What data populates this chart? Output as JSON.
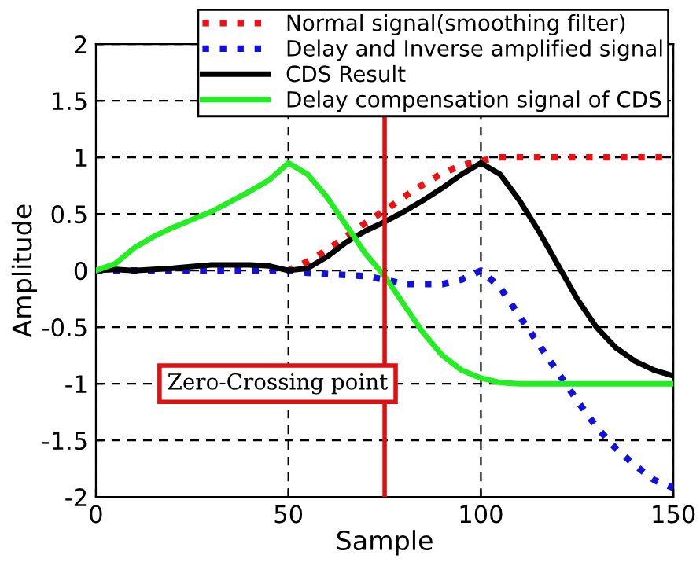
{
  "chart_data": {
    "type": "line",
    "xlabel": "Sample",
    "ylabel": "Amplitude",
    "xlim": [
      0,
      150
    ],
    "xticks": [
      0,
      50,
      100,
      150
    ],
    "ylim": [
      -2,
      2
    ],
    "yticks": [
      -2,
      -1.5,
      -1,
      -0.5,
      0,
      0.5,
      1,
      1.5,
      2
    ],
    "grid": true,
    "legend": "top right",
    "series": [
      {
        "name": "Normal signal(smoothing filter)",
        "color": "#ee1111",
        "line_style": "dotted",
        "x": [
          0,
          50,
          55,
          60,
          65,
          70,
          75,
          80,
          85,
          90,
          95,
          100,
          105,
          110,
          150
        ],
        "values": [
          0,
          0,
          0.08,
          0.18,
          0.3,
          0.42,
          0.53,
          0.65,
          0.76,
          0.86,
          0.93,
          0.97,
          1,
          1,
          1
        ]
      },
      {
        "name": "Delay and Inverse amplified signal",
        "color": "#1111dd",
        "line_style": "dotted",
        "x": [
          0,
          50,
          55,
          60,
          70,
          75,
          80,
          90,
          95,
          100,
          105,
          110,
          115,
          120,
          125,
          130,
          135,
          140,
          145,
          150
        ],
        "values": [
          0,
          0,
          -0.02,
          -0.03,
          -0.05,
          -0.08,
          -0.12,
          -0.12,
          -0.08,
          0,
          -0.15,
          -0.4,
          -0.65,
          -0.9,
          -1.15,
          -1.38,
          -1.57,
          -1.72,
          -1.85,
          -1.92
        ]
      },
      {
        "name": "CDS Result",
        "color": "#000000",
        "line_style": "solid",
        "x": [
          0,
          5,
          10,
          20,
          30,
          40,
          45,
          50,
          55,
          60,
          65,
          70,
          75,
          80,
          85,
          90,
          95,
          100,
          105,
          110,
          115,
          120,
          125,
          130,
          135,
          140,
          145,
          150
        ],
        "values": [
          0,
          0.01,
          0,
          0.02,
          0.05,
          0.05,
          0.04,
          0,
          0.02,
          0.12,
          0.25,
          0.35,
          0.43,
          0.52,
          0.62,
          0.73,
          0.85,
          0.95,
          0.85,
          0.62,
          0.35,
          0.05,
          -0.25,
          -0.5,
          -0.68,
          -0.8,
          -0.88,
          -0.93
        ]
      },
      {
        "name": "Delay compensation signal of CDS",
        "color": "#22ee22",
        "line_style": "solid",
        "x": [
          0,
          5,
          10,
          15,
          20,
          30,
          40,
          45,
          50,
          55,
          60,
          65,
          70,
          75,
          80,
          85,
          90,
          95,
          100,
          105,
          110,
          150
        ],
        "values": [
          0,
          0.06,
          0.2,
          0.3,
          0.38,
          0.52,
          0.7,
          0.8,
          0.95,
          0.85,
          0.65,
          0.4,
          0.15,
          -0.05,
          -0.3,
          -0.55,
          -0.75,
          -0.88,
          -0.95,
          -0.99,
          -1,
          -1
        ]
      }
    ],
    "ref_lines": [
      {
        "axis": "x",
        "value": 75,
        "label": "Zero-Crossing point",
        "color": "#dd1111"
      }
    ]
  }
}
